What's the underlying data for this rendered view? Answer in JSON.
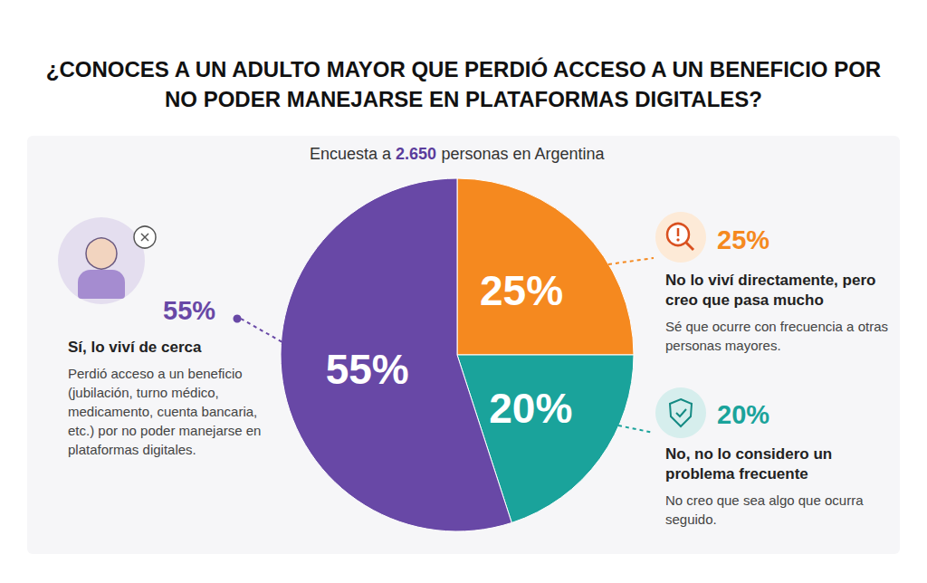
{
  "chart_data": {
    "type": "pie",
    "title": "¿CONOCES A UN ADULTO MAYOR QUE PERDIÓ ACCESO A UN BENEFICIO POR NO PODER MANEJARSE EN PLATAFORMAS DIGITALES?",
    "subtitle": "Encuesta a 2.650 personas en Argentina",
    "categories": [
      "No lo viví directamente, pero creo que pasa mucho",
      "No, no lo considero un problema frecuente",
      "Sí, lo viví de cerca"
    ],
    "values": [
      25,
      20,
      55
    ],
    "value_labels": [
      "25%",
      "20%",
      "55%"
    ],
    "colors": [
      "#f5891f",
      "#1aa39b",
      "#6848a6"
    ],
    "descriptions": [
      "Sé que ocurre con frecuencia a otras personas mayores.",
      "No creo que sea algo que ocurra seguido.",
      "Perdió acceso a un beneficio (jubilación, turno médico, medicamento, cuenta bancaria, etc.) por no poder manejarse en plataformas digitales."
    ],
    "data_labels": true
  }
}
